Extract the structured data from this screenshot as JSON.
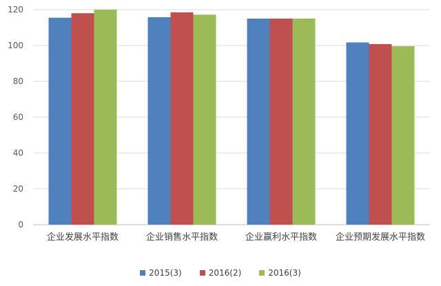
{
  "chart_data": {
    "type": "bar",
    "categories": [
      "企业发展水平指数",
      "企业销售水平指数",
      "企业赢利水平指数",
      "企业预期发展水平指数"
    ],
    "series": [
      {
        "name": "2015(3)",
        "color": "#4f81bd",
        "values": [
          115.5,
          115.8,
          115.0,
          101.7
        ]
      },
      {
        "name": "2016(2)",
        "color": "#c0504d",
        "values": [
          118.0,
          118.5,
          115.0,
          100.8
        ]
      },
      {
        "name": "2016(3)",
        "color": "#9bbb59",
        "values": [
          120.0,
          117.2,
          115.0,
          99.6
        ]
      }
    ],
    "ylim": [
      0,
      120
    ],
    "yticks": [
      0,
      20,
      40,
      60,
      80,
      100,
      120
    ],
    "grid": true,
    "legend": "bottom"
  }
}
